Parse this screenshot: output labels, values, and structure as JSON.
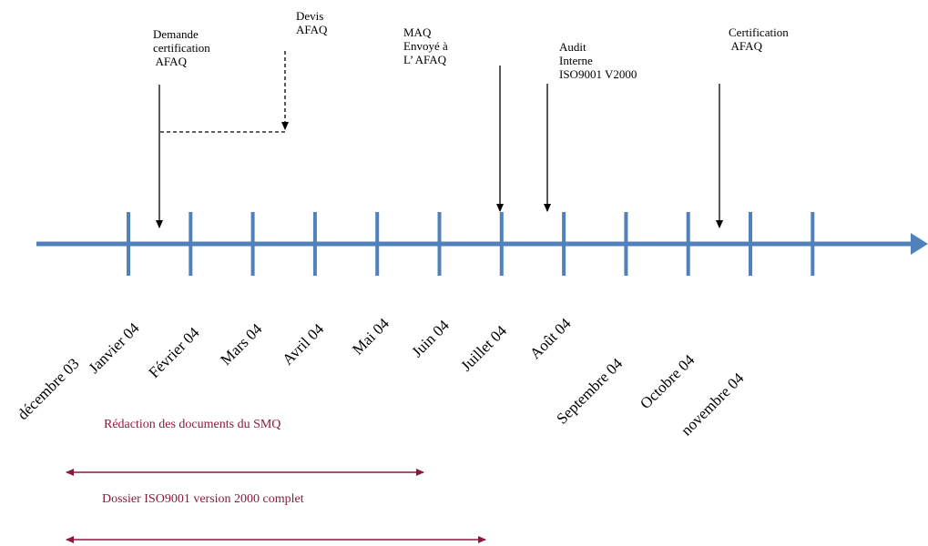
{
  "colors": {
    "axis": "#4f81bd",
    "event_arrow": "#000000",
    "period": "#8b1a3a"
  },
  "timeline": {
    "months": [
      "décembre 03",
      "Janvier 04",
      "Février 04",
      "Mars 04",
      "Avril 04",
      "Mai 04",
      "Juin 04",
      "Juillet 04",
      "Août 04",
      "Septembre 04",
      "Octobre 04",
      "novembre 04"
    ]
  },
  "events": [
    {
      "id": "demande",
      "lines": [
        "Demande",
        "certification",
        " AFAQ"
      ]
    },
    {
      "id": "devis",
      "lines": [
        "Devis",
        "AFAQ"
      ]
    },
    {
      "id": "maq",
      "lines": [
        "MAQ",
        "Envoyé à",
        "L’ AFAQ"
      ]
    },
    {
      "id": "audit",
      "lines": [
        "Audit",
        "Interne",
        "ISO9001 V2000"
      ]
    },
    {
      "id": "certification",
      "lines": [
        "Certification",
        " AFAQ"
      ]
    }
  ],
  "periods": [
    {
      "label": "Rédaction des documents du SMQ"
    },
    {
      "label": "Dossier ISO9001 version 2000 complet"
    }
  ]
}
